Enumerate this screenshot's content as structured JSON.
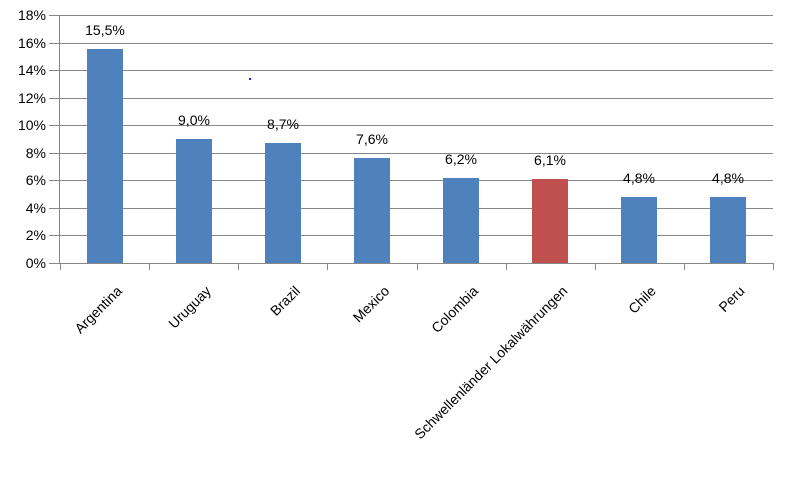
{
  "chart_data": {
    "type": "bar",
    "categories": [
      "Argentina",
      "Uruguay",
      "Brazil",
      "Mexico",
      "Colombia",
      "Schwellenländer Lokalwährungen",
      "Chile",
      "Peru"
    ],
    "values": [
      15.5,
      9.0,
      8.7,
      7.6,
      6.2,
      6.1,
      4.8,
      4.8
    ],
    "data_labels": [
      "15,5%",
      "9,0%",
      "8,7%",
      "7,6%",
      "6,2%",
      "6,1%",
      "4,8%",
      "4,8%"
    ],
    "bar_colors": [
      "#4F81BD",
      "#4F81BD",
      "#4F81BD",
      "#4F81BD",
      "#4F81BD",
      "#C0504D",
      "#4F81BD",
      "#4F81BD"
    ],
    "highlighted_category": "Schwellenländer Lokalwährungen",
    "title": "",
    "xlabel": "",
    "ylabel": "",
    "ylim": [
      0,
      18
    ],
    "ytick_step": 2,
    "ytick_labels": [
      "0%",
      "2%",
      "4%",
      "6%",
      "8%",
      "10%",
      "12%",
      "14%",
      "16%",
      "18%"
    ],
    "grid": true,
    "legend": false,
    "data_label_position": "above-bar",
    "category_label_rotation_deg": -45
  },
  "colors": {
    "bar_blue": "#4F81BD",
    "bar_red": "#C0504D",
    "gridline": "#878787",
    "axis": "#878787",
    "text": "#000000",
    "background": "#FFFFFF",
    "stray_dot": "#2222EE"
  }
}
